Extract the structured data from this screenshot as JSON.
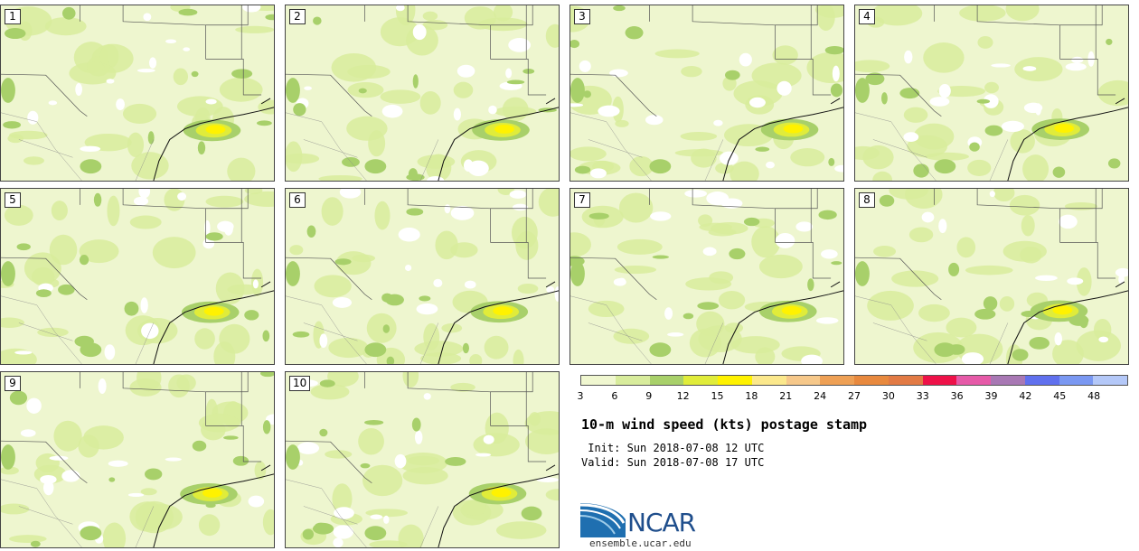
{
  "title": "10-m wind speed (kts) postage stamp",
  "init": " Init: Sun 2018-07-08 12 UTC",
  "valid": "Valid: Sun 2018-07-08 17 UTC",
  "website": "ensemble.ucar.edu",
  "logo": {
    "text": "NCAR",
    "name": "ncar-logo-icon"
  },
  "colorbar": {
    "unit": "kts",
    "tick_labels": [
      "3",
      "6",
      "9",
      "12",
      "15",
      "18",
      "21",
      "24",
      "27",
      "30",
      "33",
      "36",
      "39",
      "42",
      "45",
      "48"
    ],
    "bins": [
      {
        "from": 3,
        "to": 6,
        "color": "#f0f7d0"
      },
      {
        "from": 6,
        "to": 9,
        "color": "#d8ec9c"
      },
      {
        "from": 9,
        "to": 12,
        "color": "#a8d06a"
      },
      {
        "from": 12,
        "to": 15,
        "color": "#e0ec3a"
      },
      {
        "from": 15,
        "to": 18,
        "color": "#fff200"
      },
      {
        "from": 18,
        "to": 21,
        "color": "#fbe88c"
      },
      {
        "from": 21,
        "to": 24,
        "color": "#f6c88a"
      },
      {
        "from": 24,
        "to": 27,
        "color": "#eea055"
      },
      {
        "from": 27,
        "to": 30,
        "color": "#e8893e"
      },
      {
        "from": 30,
        "to": 33,
        "color": "#e27a44"
      },
      {
        "from": 33,
        "to": 36,
        "color": "#ee1148"
      },
      {
        "from": 36,
        "to": 39,
        "color": "#e65aa8"
      },
      {
        "from": 39,
        "to": 42,
        "color": "#a878b4"
      },
      {
        "from": 42,
        "to": 45,
        "color": "#6070ee"
      },
      {
        "from": 45,
        "to": 48,
        "color": "#7a98f2"
      },
      {
        "from": 48,
        "to": 51,
        "color": "#b4c8f8"
      }
    ]
  },
  "members": [
    {
      "label": "1"
    },
    {
      "label": "2"
    },
    {
      "label": "3"
    },
    {
      "label": "4"
    },
    {
      "label": "5"
    },
    {
      "label": "6"
    },
    {
      "label": "7"
    },
    {
      "label": "8"
    },
    {
      "label": "9"
    },
    {
      "label": "10"
    }
  ],
  "map_region": "Texas and surrounding states, Gulf of Mexico coast"
}
